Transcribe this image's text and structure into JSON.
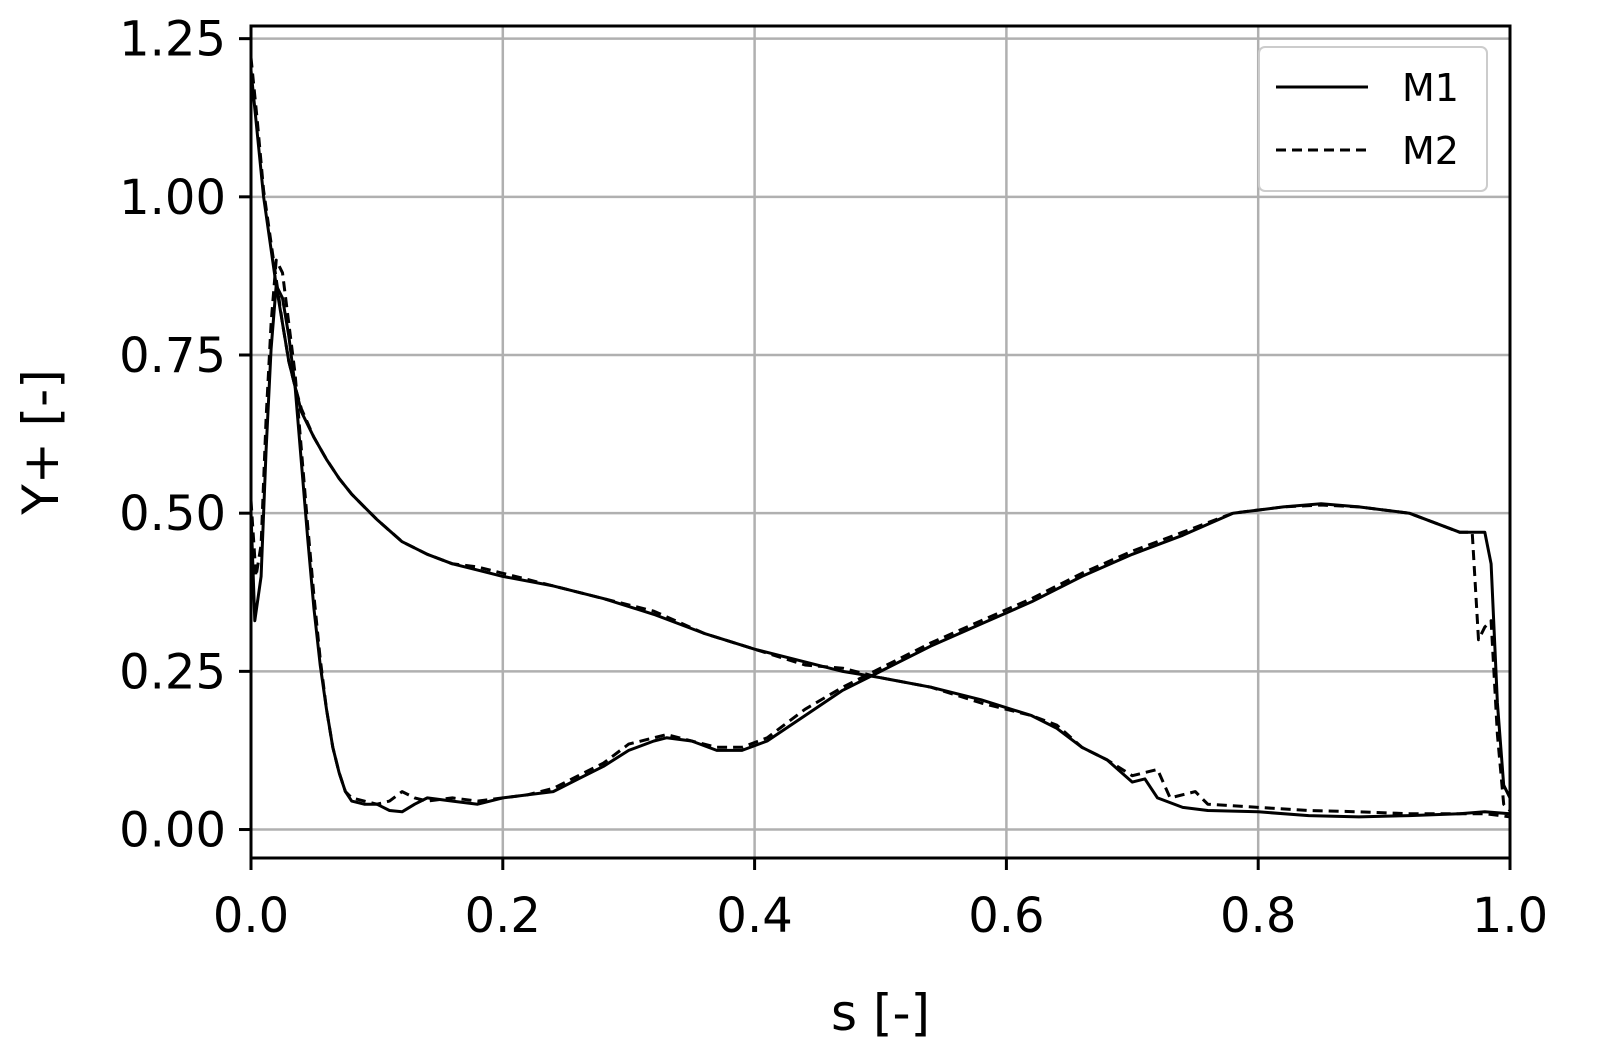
{
  "chart_data": {
    "type": "line",
    "title": "",
    "xlabel": "s [-]",
    "ylabel": "Y+ [-]",
    "xlim": [
      0.0,
      1.0
    ],
    "ylim": [
      -0.045,
      1.27
    ],
    "xticks": [
      0.0,
      0.2,
      0.4,
      0.6,
      0.8,
      1.0
    ],
    "xtick_labels": [
      "0.0",
      "0.2",
      "0.4",
      "0.6",
      "0.8",
      "1.0"
    ],
    "yticks": [
      0.0,
      0.25,
      0.5,
      0.75,
      1.0,
      1.25
    ],
    "ytick_labels": [
      "0.00",
      "0.25",
      "0.50",
      "0.75",
      "1.00",
      "1.25"
    ],
    "grid": true,
    "legend_position": "top-right",
    "series": [
      {
        "name": "M1",
        "style": "solid",
        "color": "#000000",
        "curves": [
          [
            [
              0.0,
              1.2
            ],
            [
              0.005,
              1.1
            ],
            [
              0.01,
              1.0
            ],
            [
              0.015,
              0.93
            ],
            [
              0.02,
              0.86
            ],
            [
              0.025,
              0.8
            ],
            [
              0.03,
              0.74
            ],
            [
              0.035,
              0.7
            ],
            [
              0.04,
              0.66
            ],
            [
              0.05,
              0.62
            ],
            [
              0.06,
              0.585
            ],
            [
              0.07,
              0.555
            ],
            [
              0.08,
              0.53
            ],
            [
              0.09,
              0.51
            ],
            [
              0.1,
              0.49
            ],
            [
              0.12,
              0.455
            ],
            [
              0.14,
              0.435
            ],
            [
              0.16,
              0.42
            ],
            [
              0.18,
              0.41
            ],
            [
              0.2,
              0.4
            ],
            [
              0.24,
              0.385
            ],
            [
              0.28,
              0.365
            ],
            [
              0.32,
              0.34
            ],
            [
              0.36,
              0.31
            ],
            [
              0.4,
              0.285
            ],
            [
              0.44,
              0.265
            ],
            [
              0.47,
              0.25
            ],
            [
              0.5,
              0.24
            ],
            [
              0.54,
              0.225
            ],
            [
              0.58,
              0.205
            ],
            [
              0.62,
              0.18
            ],
            [
              0.64,
              0.16
            ],
            [
              0.66,
              0.13
            ],
            [
              0.68,
              0.11
            ],
            [
              0.7,
              0.075
            ],
            [
              0.71,
              0.08
            ],
            [
              0.72,
              0.05
            ],
            [
              0.74,
              0.035
            ],
            [
              0.76,
              0.03
            ],
            [
              0.8,
              0.028
            ],
            [
              0.84,
              0.022
            ],
            [
              0.88,
              0.02
            ],
            [
              0.92,
              0.022
            ],
            [
              0.96,
              0.025
            ],
            [
              0.98,
              0.028
            ],
            [
              1.0,
              0.025
            ]
          ],
          [
            [
              0.0,
              0.5
            ],
            [
              0.003,
              0.33
            ],
            [
              0.008,
              0.4
            ],
            [
              0.012,
              0.6
            ],
            [
              0.016,
              0.76
            ],
            [
              0.02,
              0.86
            ],
            [
              0.025,
              0.84
            ],
            [
              0.03,
              0.78
            ],
            [
              0.035,
              0.7
            ],
            [
              0.04,
              0.58
            ],
            [
              0.045,
              0.46
            ],
            [
              0.05,
              0.35
            ],
            [
              0.055,
              0.26
            ],
            [
              0.06,
              0.19
            ],
            [
              0.065,
              0.13
            ],
            [
              0.07,
              0.09
            ],
            [
              0.075,
              0.06
            ],
            [
              0.08,
              0.045
            ],
            [
              0.09,
              0.04
            ],
            [
              0.1,
              0.04
            ],
            [
              0.11,
              0.03
            ],
            [
              0.12,
              0.028
            ],
            [
              0.13,
              0.04
            ],
            [
              0.14,
              0.05
            ],
            [
              0.16,
              0.045
            ],
            [
              0.18,
              0.04
            ],
            [
              0.2,
              0.05
            ],
            [
              0.22,
              0.055
            ],
            [
              0.24,
              0.06
            ],
            [
              0.26,
              0.08
            ],
            [
              0.28,
              0.1
            ],
            [
              0.3,
              0.125
            ],
            [
              0.32,
              0.14
            ],
            [
              0.33,
              0.145
            ],
            [
              0.35,
              0.14
            ],
            [
              0.37,
              0.125
            ],
            [
              0.39,
              0.125
            ],
            [
              0.41,
              0.14
            ],
            [
              0.44,
              0.18
            ],
            [
              0.47,
              0.22
            ],
            [
              0.5,
              0.25
            ],
            [
              0.54,
              0.29
            ],
            [
              0.58,
              0.325
            ],
            [
              0.62,
              0.36
            ],
            [
              0.66,
              0.4
            ],
            [
              0.7,
              0.435
            ],
            [
              0.74,
              0.465
            ],
            [
              0.78,
              0.5
            ],
            [
              0.82,
              0.51
            ],
            [
              0.85,
              0.515
            ],
            [
              0.88,
              0.51
            ],
            [
              0.92,
              0.5
            ],
            [
              0.96,
              0.47
            ],
            [
              0.98,
              0.47
            ],
            [
              0.985,
              0.42
            ],
            [
              0.99,
              0.2
            ],
            [
              0.995,
              0.07
            ],
            [
              1.0,
              0.05
            ]
          ]
        ]
      },
      {
        "name": "M2",
        "style": "dashed",
        "color": "#000000",
        "curves": [
          [
            [
              0.0,
              1.22
            ],
            [
              0.005,
              1.12
            ],
            [
              0.01,
              1.01
            ],
            [
              0.015,
              0.94
            ],
            [
              0.02,
              0.87
            ],
            [
              0.025,
              0.8
            ],
            [
              0.03,
              0.74
            ],
            [
              0.035,
              0.7
            ],
            [
              0.04,
              0.665
            ],
            [
              0.05,
              0.62
            ],
            [
              0.06,
              0.585
            ],
            [
              0.07,
              0.555
            ],
            [
              0.08,
              0.53
            ],
            [
              0.09,
              0.51
            ],
            [
              0.1,
              0.49
            ],
            [
              0.12,
              0.455
            ],
            [
              0.14,
              0.435
            ],
            [
              0.16,
              0.42
            ],
            [
              0.18,
              0.415
            ],
            [
              0.2,
              0.405
            ],
            [
              0.24,
              0.385
            ],
            [
              0.28,
              0.365
            ],
            [
              0.32,
              0.345
            ],
            [
              0.36,
              0.31
            ],
            [
              0.4,
              0.285
            ],
            [
              0.44,
              0.26
            ],
            [
              0.47,
              0.255
            ],
            [
              0.5,
              0.24
            ],
            [
              0.54,
              0.225
            ],
            [
              0.58,
              0.2
            ],
            [
              0.62,
              0.18
            ],
            [
              0.64,
              0.165
            ],
            [
              0.66,
              0.13
            ],
            [
              0.68,
              0.11
            ],
            [
              0.7,
              0.085
            ],
            [
              0.72,
              0.095
            ],
            [
              0.73,
              0.05
            ],
            [
              0.75,
              0.06
            ],
            [
              0.76,
              0.04
            ],
            [
              0.8,
              0.035
            ],
            [
              0.84,
              0.03
            ],
            [
              0.88,
              0.028
            ],
            [
              0.92,
              0.025
            ],
            [
              0.96,
              0.025
            ],
            [
              0.98,
              0.025
            ],
            [
              1.0,
              0.02
            ]
          ],
          [
            [
              0.0,
              0.52
            ],
            [
              0.004,
              0.4
            ],
            [
              0.008,
              0.45
            ],
            [
              0.012,
              0.65
            ],
            [
              0.016,
              0.8
            ],
            [
              0.02,
              0.9
            ],
            [
              0.025,
              0.88
            ],
            [
              0.03,
              0.8
            ],
            [
              0.035,
              0.72
            ],
            [
              0.04,
              0.6
            ],
            [
              0.045,
              0.48
            ],
            [
              0.05,
              0.37
            ],
            [
              0.055,
              0.27
            ],
            [
              0.06,
              0.19
            ],
            [
              0.065,
              0.13
            ],
            [
              0.07,
              0.09
            ],
            [
              0.075,
              0.06
            ],
            [
              0.08,
              0.05
            ],
            [
              0.09,
              0.045
            ],
            [
              0.1,
              0.04
            ],
            [
              0.11,
              0.045
            ],
            [
              0.12,
              0.06
            ],
            [
              0.13,
              0.05
            ],
            [
              0.14,
              0.045
            ],
            [
              0.16,
              0.05
            ],
            [
              0.18,
              0.045
            ],
            [
              0.2,
              0.05
            ],
            [
              0.22,
              0.055
            ],
            [
              0.24,
              0.065
            ],
            [
              0.26,
              0.085
            ],
            [
              0.28,
              0.105
            ],
            [
              0.3,
              0.135
            ],
            [
              0.32,
              0.145
            ],
            [
              0.33,
              0.15
            ],
            [
              0.35,
              0.14
            ],
            [
              0.37,
              0.13
            ],
            [
              0.39,
              0.13
            ],
            [
              0.41,
              0.145
            ],
            [
              0.44,
              0.19
            ],
            [
              0.47,
              0.225
            ],
            [
              0.5,
              0.255
            ],
            [
              0.54,
              0.295
            ],
            [
              0.58,
              0.33
            ],
            [
              0.62,
              0.365
            ],
            [
              0.66,
              0.405
            ],
            [
              0.7,
              0.44
            ],
            [
              0.74,
              0.47
            ],
            [
              0.78,
              0.5
            ],
            [
              0.82,
              0.51
            ],
            [
              0.85,
              0.513
            ],
            [
              0.88,
              0.51
            ],
            [
              0.92,
              0.5
            ],
            [
              0.96,
              0.47
            ],
            [
              0.97,
              0.47
            ],
            [
              0.975,
              0.3
            ],
            [
              0.98,
              0.32
            ],
            [
              0.985,
              0.33
            ],
            [
              0.99,
              0.15
            ],
            [
              0.995,
              0.04
            ],
            [
              1.0,
              0.03
            ]
          ]
        ]
      }
    ]
  }
}
